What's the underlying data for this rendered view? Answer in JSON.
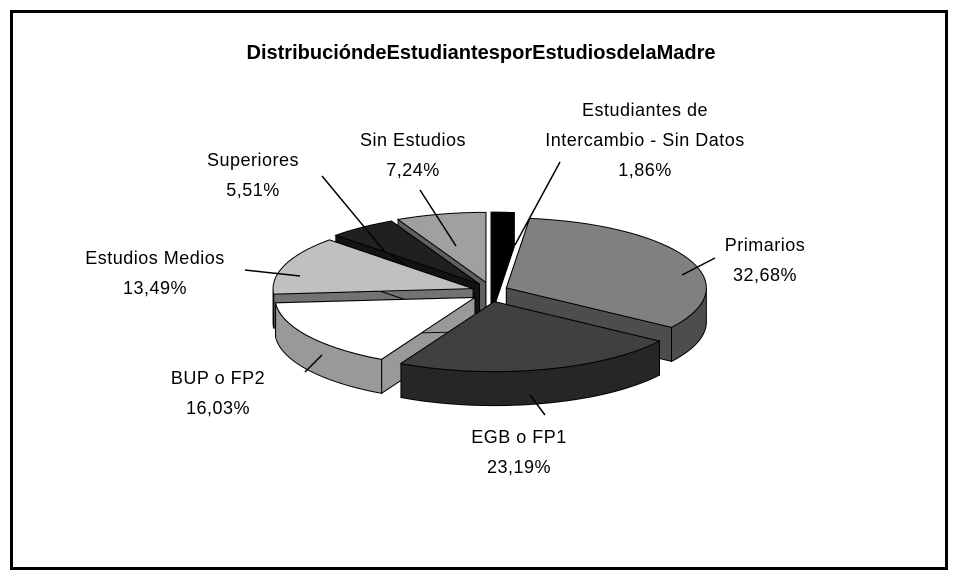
{
  "chart_data": {
    "type": "pie",
    "title": "DistribucióndeEstudiantesporEstudiosdelaMadre",
    "categories": [
      "Estudiantes de Intercambio - Sin Datos",
      "Primarios",
      "EGB o FP1",
      "BUP o FP2",
      "Estudios Medios",
      "Superiores",
      "Sin Estudios"
    ],
    "values": [
      1.86,
      32.68,
      23.19,
      16.03,
      13.49,
      5.51,
      7.24
    ],
    "value_labels": [
      "1,86%",
      "32,68%",
      "23,19%",
      "16,03%",
      "13,49%",
      "5,51%",
      "7,24%"
    ],
    "colors": [
      "#000000",
      "#808080",
      "#404040",
      "#ffffff",
      "#c0c0c0",
      "#202020",
      "#a0a0a0"
    ]
  }
}
